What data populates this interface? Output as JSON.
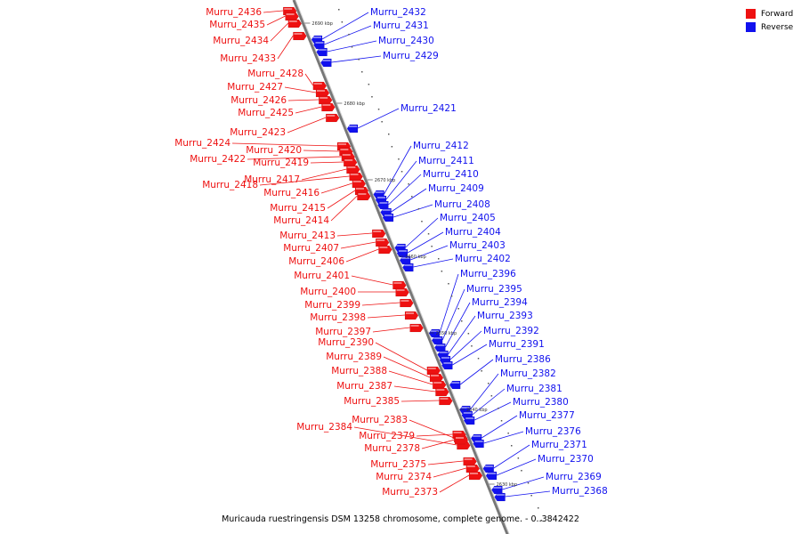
{
  "caption": "Muricauda ruestringensis DSM 13258 chromosome, complete genome. - 0..3842422",
  "legend": [
    {
      "label": "Forward",
      "color": "#ee1111"
    },
    {
      "label": "Reverse",
      "color": "#1111ee"
    }
  ],
  "colors": {
    "forward": "#ee1111",
    "reverse": "#1111ee",
    "backbone": "#888888"
  },
  "ticks": [
    "2690 kbp",
    "2680 kbp",
    "2670 kbp",
    "2660 kbp",
    "2650 kbp",
    "2640 kbp",
    "2630 kbp"
  ],
  "forward_genes": [
    "Murru_2436",
    "Murru_2435",
    "Murru_2434",
    "Murru_2433",
    "Murru_2428",
    "Murru_2427",
    "Murru_2426",
    "Murru_2425",
    "Murru_2423",
    "Murru_2424",
    "Murru_2420",
    "Murru_2422",
    "Murru_2419",
    "Murru_2417",
    "Murru_2418",
    "Murru_2416",
    "Murru_2415",
    "Murru_2414",
    "Murru_2413",
    "Murru_2407",
    "Murru_2406",
    "Murru_2401",
    "Murru_2400",
    "Murru_2399",
    "Murru_2398",
    "Murru_2397",
    "Murru_2390",
    "Murru_2389",
    "Murru_2388",
    "Murru_2387",
    "Murru_2385",
    "Murru_2383",
    "Murru_2384",
    "Murru_2379",
    "Murru_2378",
    "Murru_2375",
    "Murru_2374",
    "Murru_2373"
  ],
  "reverse_genes": [
    "Murru_2432",
    "Murru_2431",
    "Murru_2430",
    "Murru_2429",
    "Murru_2421",
    "Murru_2412",
    "Murru_2411",
    "Murru_2410",
    "Murru_2409",
    "Murru_2408",
    "Murru_2405",
    "Murru_2404",
    "Murru_2403",
    "Murru_2402",
    "Murru_2396",
    "Murru_2395",
    "Murru_2394",
    "Murru_2393",
    "Murru_2392",
    "Murru_2391",
    "Murru_2386",
    "Murru_2382",
    "Murru_2381",
    "Murru_2380",
    "Murru_2377",
    "Murru_2376",
    "Murru_2371",
    "Murru_2370",
    "Murru_2369",
    "Murru_2368"
  ]
}
